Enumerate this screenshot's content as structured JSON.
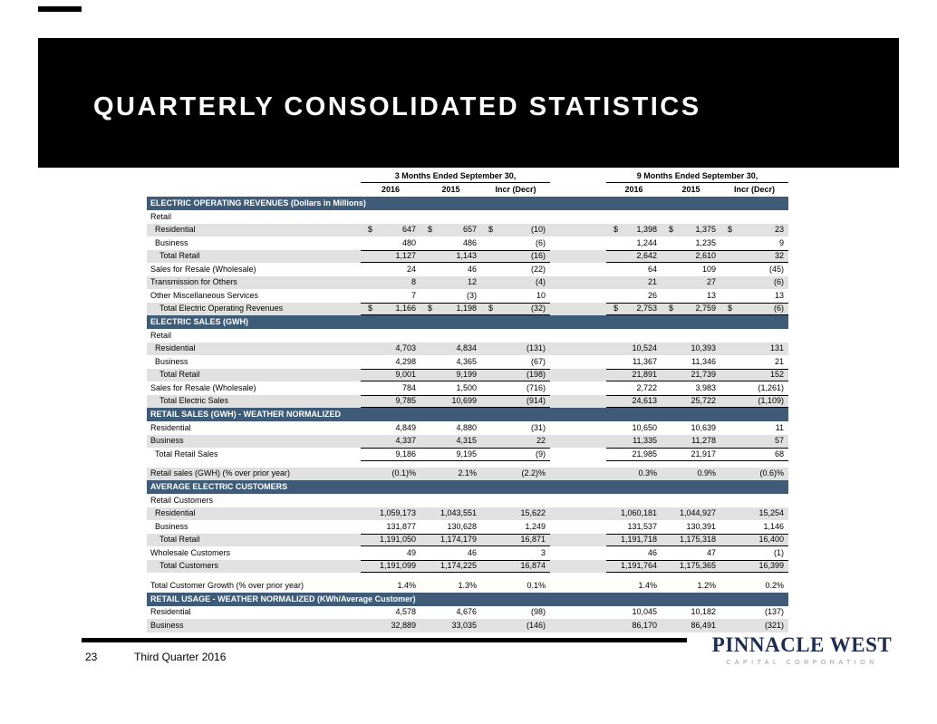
{
  "colors": {
    "section_header_bg": "#3e5c78",
    "row_shade": "#e1e1e1",
    "banner_bg": "#000000",
    "logo_navy": "#1e2c4f",
    "logo_gray": "#949aa3"
  },
  "page": {
    "title": "QUARTERLY CONSOLIDATED STATISTICS",
    "page_number": "23",
    "footer_label": "Third Quarter 2016",
    "logo": {
      "line1": "PINNACLE WEST",
      "line2": "CAPITAL CORPORATION"
    }
  },
  "table": {
    "column_groups": [
      {
        "label": "3 Months Ended September 30,",
        "columns": [
          "2016",
          "2015",
          "Incr (Decr)"
        ]
      },
      {
        "label": "9 Months Ended September 30,",
        "columns": [
          "2016",
          "2015",
          "Incr (Decr)"
        ]
      }
    ],
    "sections": [
      {
        "header": "ELECTRIC OPERATING REVENUES (Dollars in Millions)",
        "rows": [
          {
            "label": "Retail",
            "type": "subheader",
            "shaded": false
          },
          {
            "label": "Residential",
            "indent": 1,
            "dollar": true,
            "shaded": true,
            "values": [
              "647",
              "657",
              "(10)",
              "1,398",
              "1,375",
              "23"
            ]
          },
          {
            "label": "Business",
            "indent": 1,
            "shaded": false,
            "values": [
              "480",
              "486",
              "(6)",
              "1,244",
              "1,235",
              "9"
            ]
          },
          {
            "label": "Total Retail",
            "indent": 2,
            "type": "total",
            "shaded": true,
            "values": [
              "1,127",
              "1,143",
              "(16)",
              "2,642",
              "2,610",
              "32"
            ]
          },
          {
            "label": "Sales for Resale (Wholesale)",
            "shaded": false,
            "values": [
              "24",
              "46",
              "(22)",
              "64",
              "109",
              "(45)"
            ]
          },
          {
            "label": "Transmission for Others",
            "shaded": true,
            "values": [
              "8",
              "12",
              "(4)",
              "21",
              "27",
              "(6)"
            ]
          },
          {
            "label": "Other Miscellaneous Services",
            "shaded": false,
            "values": [
              "7",
              "(3)",
              "10",
              "26",
              "13",
              "13"
            ]
          },
          {
            "label": "Total Electric Operating Revenues",
            "indent": 2,
            "type": "total",
            "dollar": true,
            "shaded": true,
            "values": [
              "1,166",
              "1,198",
              "(32)",
              "2,753",
              "2,759",
              "(6)"
            ]
          }
        ]
      },
      {
        "header": "ELECTRIC SALES (GWH)",
        "rows": [
          {
            "label": "Retail",
            "type": "subheader",
            "shaded": false
          },
          {
            "label": "Residential",
            "indent": 1,
            "shaded": true,
            "values": [
              "4,703",
              "4,834",
              "(131)",
              "10,524",
              "10,393",
              "131"
            ]
          },
          {
            "label": "Business",
            "indent": 1,
            "shaded": false,
            "values": [
              "4,298",
              "4,365",
              "(67)",
              "11,367",
              "11,346",
              "21"
            ]
          },
          {
            "label": "Total Retail",
            "indent": 2,
            "type": "total",
            "shaded": true,
            "values": [
              "9,001",
              "9,199",
              "(198)",
              "21,891",
              "21,739",
              "152"
            ]
          },
          {
            "label": "Sales for Resale (Wholesale)",
            "shaded": false,
            "values": [
              "784",
              "1,500",
              "(716)",
              "2,722",
              "3,983",
              "(1,261)"
            ]
          },
          {
            "label": "Total Electric Sales",
            "indent": 2,
            "type": "total",
            "shaded": true,
            "values": [
              "9,785",
              "10,699",
              "(914)",
              "24,613",
              "25,722",
              "(1,109)"
            ]
          }
        ]
      },
      {
        "header": "RETAIL SALES (GWH) - WEATHER NORMALIZED",
        "rows": [
          {
            "label": "Residential",
            "shaded": false,
            "values": [
              "4,849",
              "4,880",
              "(31)",
              "10,650",
              "10,639",
              "11"
            ]
          },
          {
            "label": "Business",
            "shaded": true,
            "values": [
              "4,337",
              "4,315",
              "22",
              "11,335",
              "11,278",
              "57"
            ]
          },
          {
            "label": "Total Retail Sales",
            "indent": 1,
            "type": "total",
            "shaded": false,
            "values": [
              "9,186",
              "9,195",
              "(9)",
              "21,985",
              "21,917",
              "68"
            ]
          },
          {
            "type": "spacer"
          },
          {
            "label": "Retail sales (GWH) (% over prior year)",
            "shaded": true,
            "values": [
              "(0.1)%",
              "2.1%",
              "(2.2)%",
              "0.3%",
              "0.9%",
              "(0.6)%"
            ]
          }
        ]
      },
      {
        "header": "AVERAGE ELECTRIC CUSTOMERS",
        "rows": [
          {
            "label": "Retail Customers",
            "type": "subheader",
            "shaded": false
          },
          {
            "label": "Residential",
            "indent": 1,
            "shaded": true,
            "values": [
              "1,059,173",
              "1,043,551",
              "15,622",
              "1,060,181",
              "1,044,927",
              "15,254"
            ]
          },
          {
            "label": "Business",
            "indent": 1,
            "shaded": false,
            "values": [
              "131,877",
              "130,628",
              "1,249",
              "131,537",
              "130,391",
              "1,146"
            ]
          },
          {
            "label": "Total Retail",
            "indent": 2,
            "type": "total",
            "shaded": true,
            "values": [
              "1,191,050",
              "1,174,179",
              "16,871",
              "1,191,718",
              "1,175,318",
              "16,400"
            ]
          },
          {
            "label": "Wholesale Customers",
            "shaded": false,
            "values": [
              "49",
              "46",
              "3",
              "46",
              "47",
              "(1)"
            ]
          },
          {
            "label": "Total Customers",
            "indent": 2,
            "type": "total",
            "shaded": true,
            "values": [
              "1,191,099",
              "1,174,225",
              "16,874",
              "1,191,764",
              "1,175,365",
              "16,399"
            ]
          },
          {
            "type": "spacer"
          },
          {
            "label": "Total Customer Growth (% over prior year)",
            "shaded": false,
            "values": [
              "1.4%",
              "1.3%",
              "0.1%",
              "1.4%",
              "1.2%",
              "0.2%"
            ]
          }
        ]
      },
      {
        "header": "RETAIL USAGE - WEATHER NORMALIZED (KWh/Average Customer)",
        "rows": [
          {
            "label": "Residential",
            "shaded": false,
            "values": [
              "4,578",
              "4,676",
              "(98)",
              "10,045",
              "10,182",
              "(137)"
            ]
          },
          {
            "label": "Business",
            "shaded": true,
            "values": [
              "32,889",
              "33,035",
              "(146)",
              "86,170",
              "86,491",
              "(321)"
            ]
          }
        ]
      }
    ]
  }
}
